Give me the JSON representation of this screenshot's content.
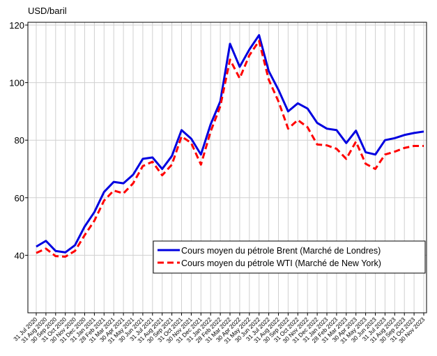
{
  "chart_data": {
    "type": "line",
    "y_label": "USD/baril",
    "categories": [
      "31 Jul 2020",
      "31 Aug 2020",
      "30 Sep 2020",
      "31 Oct 2020",
      "30 Nov 2020",
      "31 Dec 2020",
      "31 Jan 2021",
      "28 Feb 2021",
      "31 Mar 2021",
      "30 Apr 2021",
      "31 May 2021",
      "30 Jun 2021",
      "31 Jul 2021",
      "31 Aug 2021",
      "30 Sep 2021",
      "31 Oct 2021",
      "30 Nov 2021",
      "31 Dec 2021",
      "31 Jan 2022",
      "28 Feb 2022",
      "31 Mar 2022",
      "30 Apr 2022",
      "31 May 2022",
      "30 Jun 2022",
      "31 Jul 2022",
      "31 Aug 2022",
      "30 Sep 2022",
      "31 Oct 2022",
      "30 Nov 2022",
      "31 Dec 2022",
      "31 Jan 2023",
      "28 Feb 2023",
      "31 Mar 2023",
      "30 Apr 2023",
      "31 May 2023",
      "30 Jun 2023",
      "31 Jul 2023",
      "31 Aug 2023",
      "30 Sep 2023",
      "31 Oct 2023",
      "30 Nov 2023"
    ],
    "series": [
      {
        "name": "Cours moyen du pétrole Brent (Marché de Londres)",
        "color": "#0000e0",
        "dash": false,
        "values": [
          43,
          45,
          41.5,
          41,
          43.5,
          50,
          55,
          62,
          65.5,
          65,
          68,
          73.5,
          74,
          70,
          74.5,
          83.5,
          80.5,
          75,
          85.5,
          93.5,
          113.5,
          105.5,
          111.5,
          116.5,
          104,
          97.5,
          90,
          92.8,
          91,
          86,
          84,
          83.5,
          79,
          83.3,
          75.8,
          75,
          80,
          80.7,
          81.8,
          82.5,
          83
        ]
      },
      {
        "name": "Cours moyen du pétrole WTI (Marché de New York)",
        "color": "#ff0000",
        "dash": true,
        "values": [
          40.8,
          42.3,
          39.7,
          39.5,
          41.5,
          47,
          52,
          59,
          62.5,
          61.5,
          65,
          71,
          72.5,
          67.8,
          71.5,
          81.3,
          79,
          71.5,
          83,
          91.8,
          108,
          101.5,
          109.5,
          114.5,
          101,
          93.5,
          84,
          87,
          84.5,
          78.5,
          78.2,
          77,
          73.5,
          79.5,
          71.8,
          70,
          75,
          76,
          77.3,
          78,
          78
        ]
      }
    ],
    "ylim": [
      20,
      120
    ],
    "yticks": [
      40,
      60,
      80,
      100,
      120
    ],
    "grid": true,
    "legend": "lower right"
  }
}
